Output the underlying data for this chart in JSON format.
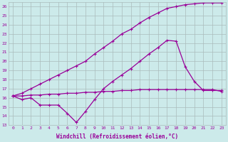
{
  "xlabel": "Windchill (Refroidissement éolien,°C)",
  "bg_color": "#cceaea",
  "grid_color": "#aabbbb",
  "line_color": "#990099",
  "xmin": 0,
  "xmax": 23,
  "ymin": 13,
  "ymax": 26,
  "line1_x": [
    0,
    1,
    2,
    3,
    4,
    5,
    6,
    7,
    8,
    9,
    10,
    11,
    12,
    13,
    14,
    15,
    16,
    17,
    18,
    19,
    20,
    21,
    22,
    23
  ],
  "line1_y": [
    16.2,
    16.2,
    16.3,
    16.3,
    16.4,
    16.4,
    16.5,
    16.5,
    16.6,
    16.6,
    16.7,
    16.7,
    16.8,
    16.8,
    16.9,
    16.9,
    16.9,
    16.9,
    16.9,
    16.9,
    16.9,
    16.9,
    16.9,
    16.7
  ],
  "line2_x": [
    0,
    1,
    2,
    3,
    4,
    5,
    6,
    7,
    8,
    9,
    10,
    11,
    12,
    13,
    14,
    15,
    16,
    17,
    18,
    19,
    20,
    21,
    22,
    23
  ],
  "line2_y": [
    16.2,
    15.8,
    16.0,
    15.2,
    15.2,
    15.2,
    14.3,
    13.3,
    14.5,
    15.8,
    17.0,
    17.8,
    18.5,
    19.2,
    20.0,
    20.8,
    21.5,
    22.3,
    22.2,
    19.4,
    17.8,
    16.8,
    16.8,
    16.8
  ],
  "line3_x": [
    0,
    1,
    2,
    3,
    4,
    5,
    6,
    7,
    8,
    9,
    10,
    11,
    12,
    13,
    14,
    15,
    16,
    17,
    18,
    19,
    20,
    21,
    22,
    23
  ],
  "line3_y": [
    16.2,
    16.5,
    17.0,
    17.5,
    18.0,
    18.5,
    19.0,
    19.5,
    20.0,
    20.8,
    21.5,
    22.2,
    23.0,
    23.5,
    24.2,
    24.8,
    25.3,
    25.8,
    26.0,
    26.2,
    26.3,
    26.4,
    26.4,
    26.4
  ]
}
